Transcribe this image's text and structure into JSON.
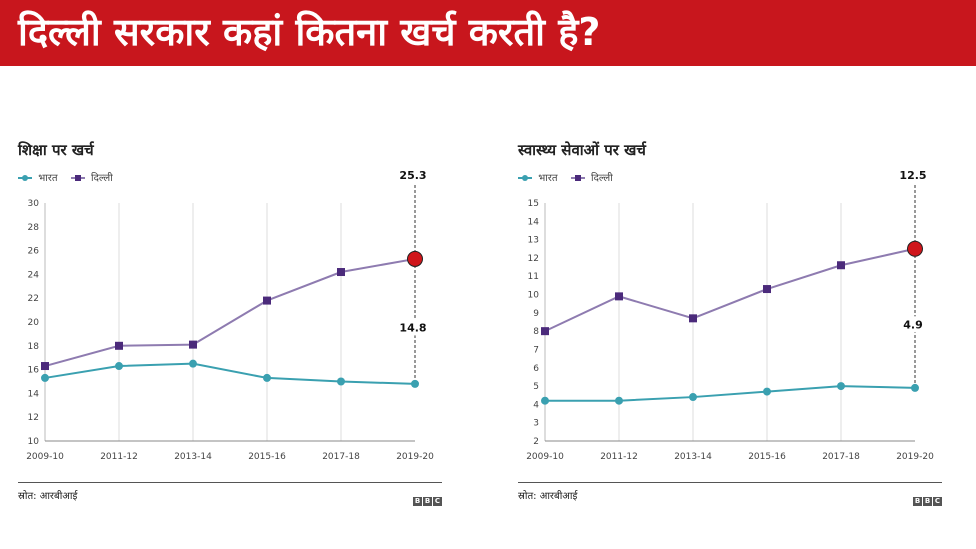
{
  "banner": {
    "title": "दिल्ली सरकार कहां कितना खर्च करती है?"
  },
  "colors": {
    "banner": "#c8161d",
    "india": "#3aa0b0",
    "delhi": "#8e7bb0",
    "marker_delhi": "#4b2a7b",
    "highlight": "#d0161b"
  },
  "chart_data": [
    {
      "type": "line",
      "title": "शिक्षा पर खर्च",
      "categories": [
        "2009-10",
        "2011-12",
        "2013-14",
        "2015-16",
        "2017-18",
        "2019-20"
      ],
      "series": [
        {
          "name": "भारत",
          "values": [
            15.3,
            16.3,
            16.5,
            15.3,
            15.0,
            14.8
          ]
        },
        {
          "name": "दिल्ली",
          "values": [
            16.3,
            18.0,
            18.1,
            21.8,
            24.2,
            25.3
          ]
        }
      ],
      "y_ticks": [
        "10",
        "12",
        "14",
        "16",
        "18",
        "20",
        "22",
        "24",
        "26",
        "28",
        "30"
      ],
      "ylim": [
        10,
        30
      ],
      "annotations": {
        "delhi_last": "25.3",
        "india_last": "14.8"
      },
      "grid": "vertical",
      "legend": "top-left",
      "source": "स्रोत: आरबीआई",
      "logo": "BBC"
    },
    {
      "type": "line",
      "title": "स्वास्थ्य सेवाओं पर खर्च",
      "categories": [
        "2009-10",
        "2011-12",
        "2013-14",
        "2015-16",
        "2017-18",
        "2019-20"
      ],
      "series": [
        {
          "name": "भारत",
          "values": [
            4.2,
            4.2,
            4.4,
            4.7,
            5.0,
            4.9
          ]
        },
        {
          "name": "दिल्ली",
          "values": [
            8.0,
            9.9,
            8.7,
            10.3,
            11.6,
            12.5
          ]
        }
      ],
      "y_ticks": [
        "2",
        "3",
        "4",
        "5",
        "6",
        "7",
        "8",
        "9",
        "10",
        "11",
        "12",
        "13",
        "14",
        "15"
      ],
      "ylim": [
        2,
        15
      ],
      "annotations": {
        "delhi_last": "12.5",
        "india_last": "4.9"
      },
      "grid": "vertical",
      "legend": "top-left",
      "source": "स्रोत: आरबीआई",
      "logo": "BBC"
    }
  ]
}
